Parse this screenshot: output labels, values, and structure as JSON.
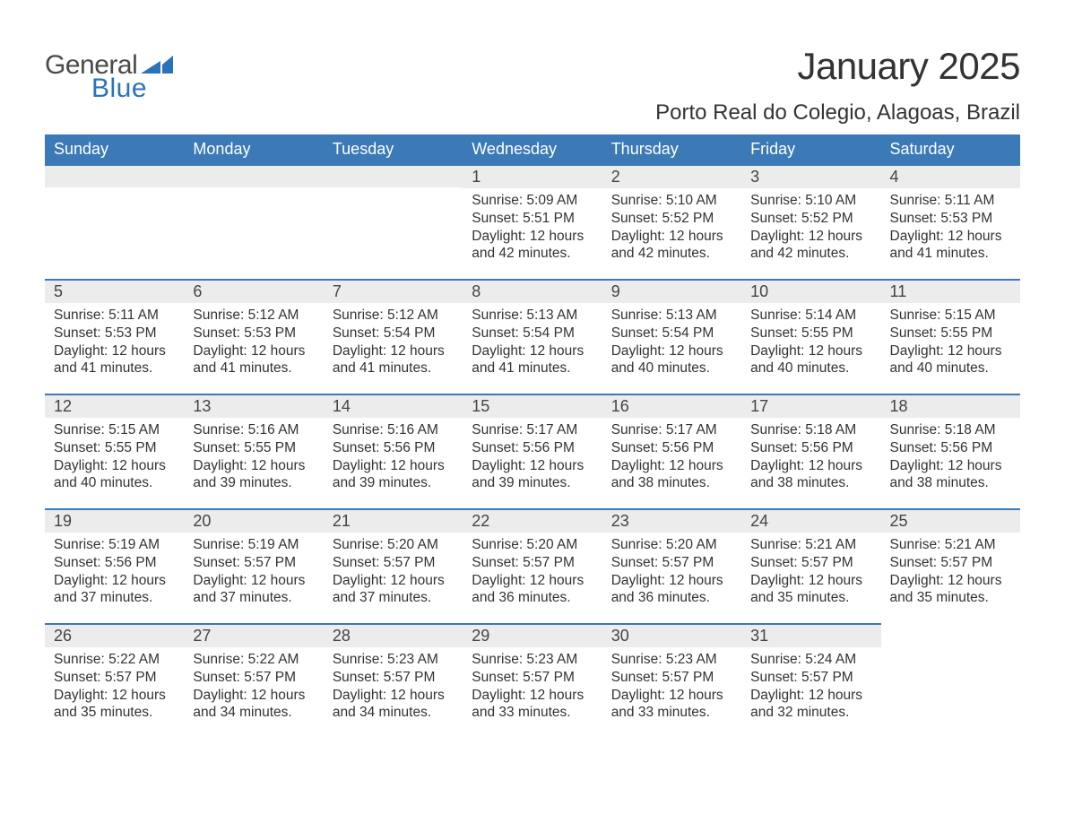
{
  "logo": {
    "text_general": "General",
    "text_blue": "Blue",
    "flag_color": "#2a73b8"
  },
  "header": {
    "month_title": "January 2025",
    "location": "Porto Real do Colegio, Alagoas, Brazil"
  },
  "colors": {
    "header_bg": "#3b7ab7",
    "header_text": "#ffffff",
    "day_bar_bg": "#ececec",
    "day_bar_border": "#3b7ab7",
    "body_text": "#333333",
    "page_bg": "#ffffff"
  },
  "weekdays": [
    "Sunday",
    "Monday",
    "Tuesday",
    "Wednesday",
    "Thursday",
    "Friday",
    "Saturday"
  ],
  "weeks": [
    [
      {
        "day": "",
        "sunrise": "",
        "sunset": "",
        "daylight1": "",
        "daylight2": ""
      },
      {
        "day": "",
        "sunrise": "",
        "sunset": "",
        "daylight1": "",
        "daylight2": ""
      },
      {
        "day": "",
        "sunrise": "",
        "sunset": "",
        "daylight1": "",
        "daylight2": ""
      },
      {
        "day": "1",
        "sunrise": "Sunrise: 5:09 AM",
        "sunset": "Sunset: 5:51 PM",
        "daylight1": "Daylight: 12 hours",
        "daylight2": "and 42 minutes."
      },
      {
        "day": "2",
        "sunrise": "Sunrise: 5:10 AM",
        "sunset": "Sunset: 5:52 PM",
        "daylight1": "Daylight: 12 hours",
        "daylight2": "and 42 minutes."
      },
      {
        "day": "3",
        "sunrise": "Sunrise: 5:10 AM",
        "sunset": "Sunset: 5:52 PM",
        "daylight1": "Daylight: 12 hours",
        "daylight2": "and 42 minutes."
      },
      {
        "day": "4",
        "sunrise": "Sunrise: 5:11 AM",
        "sunset": "Sunset: 5:53 PM",
        "daylight1": "Daylight: 12 hours",
        "daylight2": "and 41 minutes."
      }
    ],
    [
      {
        "day": "5",
        "sunrise": "Sunrise: 5:11 AM",
        "sunset": "Sunset: 5:53 PM",
        "daylight1": "Daylight: 12 hours",
        "daylight2": "and 41 minutes."
      },
      {
        "day": "6",
        "sunrise": "Sunrise: 5:12 AM",
        "sunset": "Sunset: 5:53 PM",
        "daylight1": "Daylight: 12 hours",
        "daylight2": "and 41 minutes."
      },
      {
        "day": "7",
        "sunrise": "Sunrise: 5:12 AM",
        "sunset": "Sunset: 5:54 PM",
        "daylight1": "Daylight: 12 hours",
        "daylight2": "and 41 minutes."
      },
      {
        "day": "8",
        "sunrise": "Sunrise: 5:13 AM",
        "sunset": "Sunset: 5:54 PM",
        "daylight1": "Daylight: 12 hours",
        "daylight2": "and 41 minutes."
      },
      {
        "day": "9",
        "sunrise": "Sunrise: 5:13 AM",
        "sunset": "Sunset: 5:54 PM",
        "daylight1": "Daylight: 12 hours",
        "daylight2": "and 40 minutes."
      },
      {
        "day": "10",
        "sunrise": "Sunrise: 5:14 AM",
        "sunset": "Sunset: 5:55 PM",
        "daylight1": "Daylight: 12 hours",
        "daylight2": "and 40 minutes."
      },
      {
        "day": "11",
        "sunrise": "Sunrise: 5:15 AM",
        "sunset": "Sunset: 5:55 PM",
        "daylight1": "Daylight: 12 hours",
        "daylight2": "and 40 minutes."
      }
    ],
    [
      {
        "day": "12",
        "sunrise": "Sunrise: 5:15 AM",
        "sunset": "Sunset: 5:55 PM",
        "daylight1": "Daylight: 12 hours",
        "daylight2": "and 40 minutes."
      },
      {
        "day": "13",
        "sunrise": "Sunrise: 5:16 AM",
        "sunset": "Sunset: 5:55 PM",
        "daylight1": "Daylight: 12 hours",
        "daylight2": "and 39 minutes."
      },
      {
        "day": "14",
        "sunrise": "Sunrise: 5:16 AM",
        "sunset": "Sunset: 5:56 PM",
        "daylight1": "Daylight: 12 hours",
        "daylight2": "and 39 minutes."
      },
      {
        "day": "15",
        "sunrise": "Sunrise: 5:17 AM",
        "sunset": "Sunset: 5:56 PM",
        "daylight1": "Daylight: 12 hours",
        "daylight2": "and 39 minutes."
      },
      {
        "day": "16",
        "sunrise": "Sunrise: 5:17 AM",
        "sunset": "Sunset: 5:56 PM",
        "daylight1": "Daylight: 12 hours",
        "daylight2": "and 38 minutes."
      },
      {
        "day": "17",
        "sunrise": "Sunrise: 5:18 AM",
        "sunset": "Sunset: 5:56 PM",
        "daylight1": "Daylight: 12 hours",
        "daylight2": "and 38 minutes."
      },
      {
        "day": "18",
        "sunrise": "Sunrise: 5:18 AM",
        "sunset": "Sunset: 5:56 PM",
        "daylight1": "Daylight: 12 hours",
        "daylight2": "and 38 minutes."
      }
    ],
    [
      {
        "day": "19",
        "sunrise": "Sunrise: 5:19 AM",
        "sunset": "Sunset: 5:56 PM",
        "daylight1": "Daylight: 12 hours",
        "daylight2": "and 37 minutes."
      },
      {
        "day": "20",
        "sunrise": "Sunrise: 5:19 AM",
        "sunset": "Sunset: 5:57 PM",
        "daylight1": "Daylight: 12 hours",
        "daylight2": "and 37 minutes."
      },
      {
        "day": "21",
        "sunrise": "Sunrise: 5:20 AM",
        "sunset": "Sunset: 5:57 PM",
        "daylight1": "Daylight: 12 hours",
        "daylight2": "and 37 minutes."
      },
      {
        "day": "22",
        "sunrise": "Sunrise: 5:20 AM",
        "sunset": "Sunset: 5:57 PM",
        "daylight1": "Daylight: 12 hours",
        "daylight2": "and 36 minutes."
      },
      {
        "day": "23",
        "sunrise": "Sunrise: 5:20 AM",
        "sunset": "Sunset: 5:57 PM",
        "daylight1": "Daylight: 12 hours",
        "daylight2": "and 36 minutes."
      },
      {
        "day": "24",
        "sunrise": "Sunrise: 5:21 AM",
        "sunset": "Sunset: 5:57 PM",
        "daylight1": "Daylight: 12 hours",
        "daylight2": "and 35 minutes."
      },
      {
        "day": "25",
        "sunrise": "Sunrise: 5:21 AM",
        "sunset": "Sunset: 5:57 PM",
        "daylight1": "Daylight: 12 hours",
        "daylight2": "and 35 minutes."
      }
    ],
    [
      {
        "day": "26",
        "sunrise": "Sunrise: 5:22 AM",
        "sunset": "Sunset: 5:57 PM",
        "daylight1": "Daylight: 12 hours",
        "daylight2": "and 35 minutes."
      },
      {
        "day": "27",
        "sunrise": "Sunrise: 5:22 AM",
        "sunset": "Sunset: 5:57 PM",
        "daylight1": "Daylight: 12 hours",
        "daylight2": "and 34 minutes."
      },
      {
        "day": "28",
        "sunrise": "Sunrise: 5:23 AM",
        "sunset": "Sunset: 5:57 PM",
        "daylight1": "Daylight: 12 hours",
        "daylight2": "and 34 minutes."
      },
      {
        "day": "29",
        "sunrise": "Sunrise: 5:23 AM",
        "sunset": "Sunset: 5:57 PM",
        "daylight1": "Daylight: 12 hours",
        "daylight2": "and 33 minutes."
      },
      {
        "day": "30",
        "sunrise": "Sunrise: 5:23 AM",
        "sunset": "Sunset: 5:57 PM",
        "daylight1": "Daylight: 12 hours",
        "daylight2": "and 33 minutes."
      },
      {
        "day": "31",
        "sunrise": "Sunrise: 5:24 AM",
        "sunset": "Sunset: 5:57 PM",
        "daylight1": "Daylight: 12 hours",
        "daylight2": "and 32 minutes."
      },
      {
        "day": "",
        "sunrise": "",
        "sunset": "",
        "daylight1": "",
        "daylight2": ""
      }
    ]
  ]
}
